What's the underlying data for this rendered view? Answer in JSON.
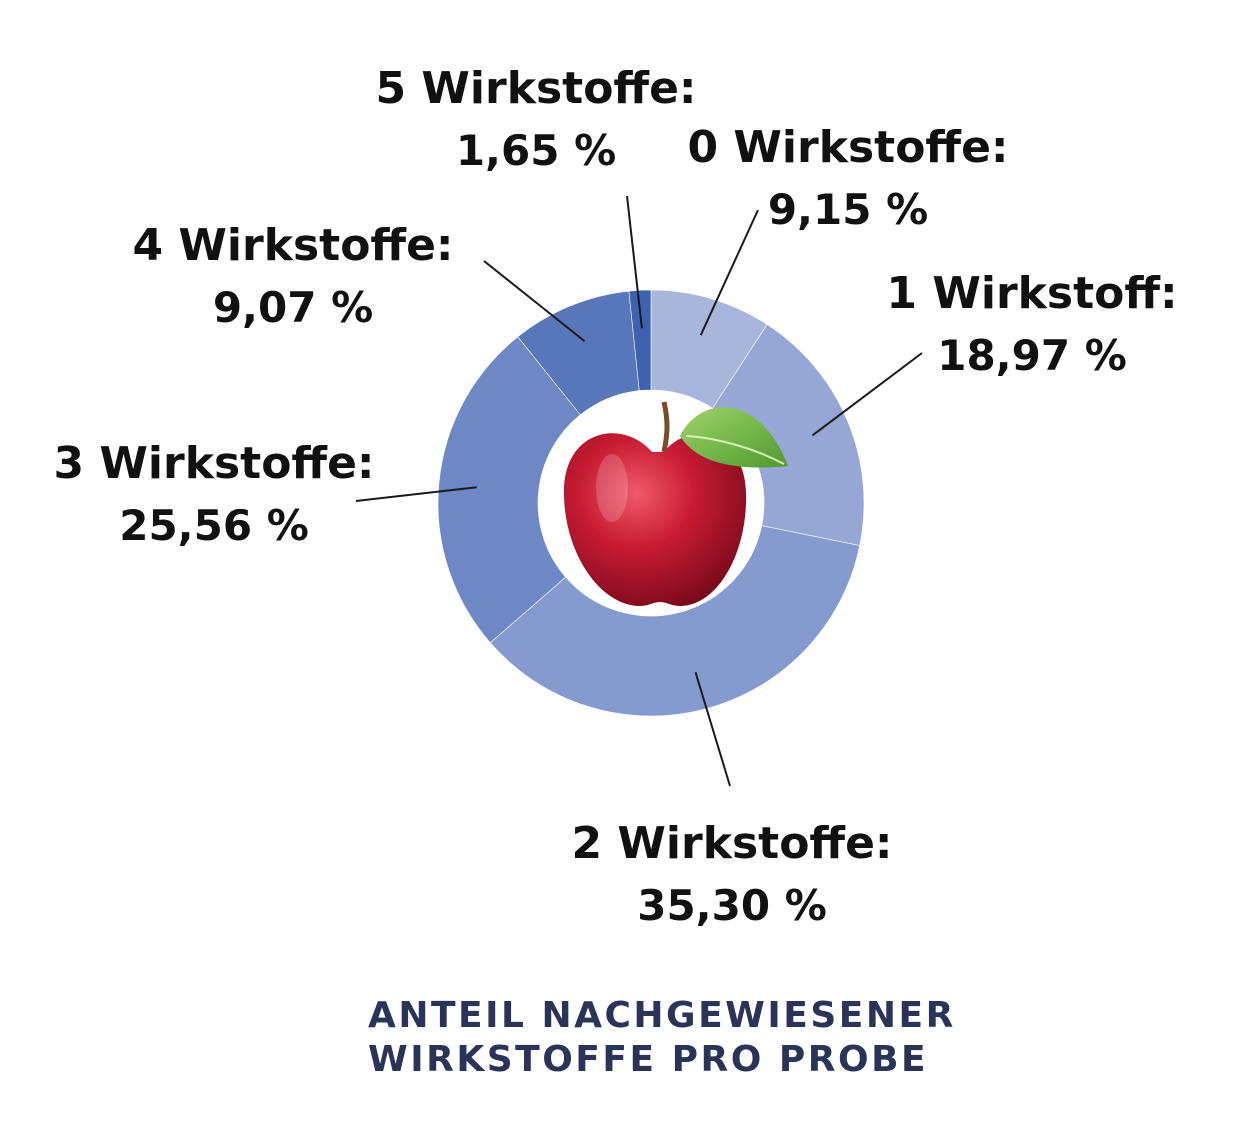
{
  "chart_data": {
    "type": "pie",
    "donut": true,
    "title": "ANTEIL NACHGEWIESENER WIRKSTOFFE PRO PROBE",
    "title_lines": [
      "ANTEIL NACHGEWIESENER",
      "WIRKSTOFFE PRO PROBE"
    ],
    "center_icon": "apple-icon",
    "slices": [
      {
        "name": "0 Wirkstoffe:",
        "value": 9.15,
        "value_label": "9,15 %",
        "color": "#a9b6dc"
      },
      {
        "name": "1 Wirkstoff:",
        "value": 18.97,
        "value_label": "18,97 %",
        "color": "#97a7d5"
      },
      {
        "name": "2 Wirkstoffe:",
        "value": 35.3,
        "value_label": "35,30 %",
        "color": "#859ace"
      },
      {
        "name": "3 Wirkstoffe:",
        "value": 25.56,
        "value_label": "25,56 %",
        "color": "#6e88c6"
      },
      {
        "name": "4 Wirkstoffe:",
        "value": 9.07,
        "value_label": "9,07 %",
        "color": "#5876ba"
      },
      {
        "name": "5 Wirkstoffe:",
        "value": 1.65,
        "value_label": "1,65 %",
        "color": "#3f62b0"
      }
    ]
  }
}
